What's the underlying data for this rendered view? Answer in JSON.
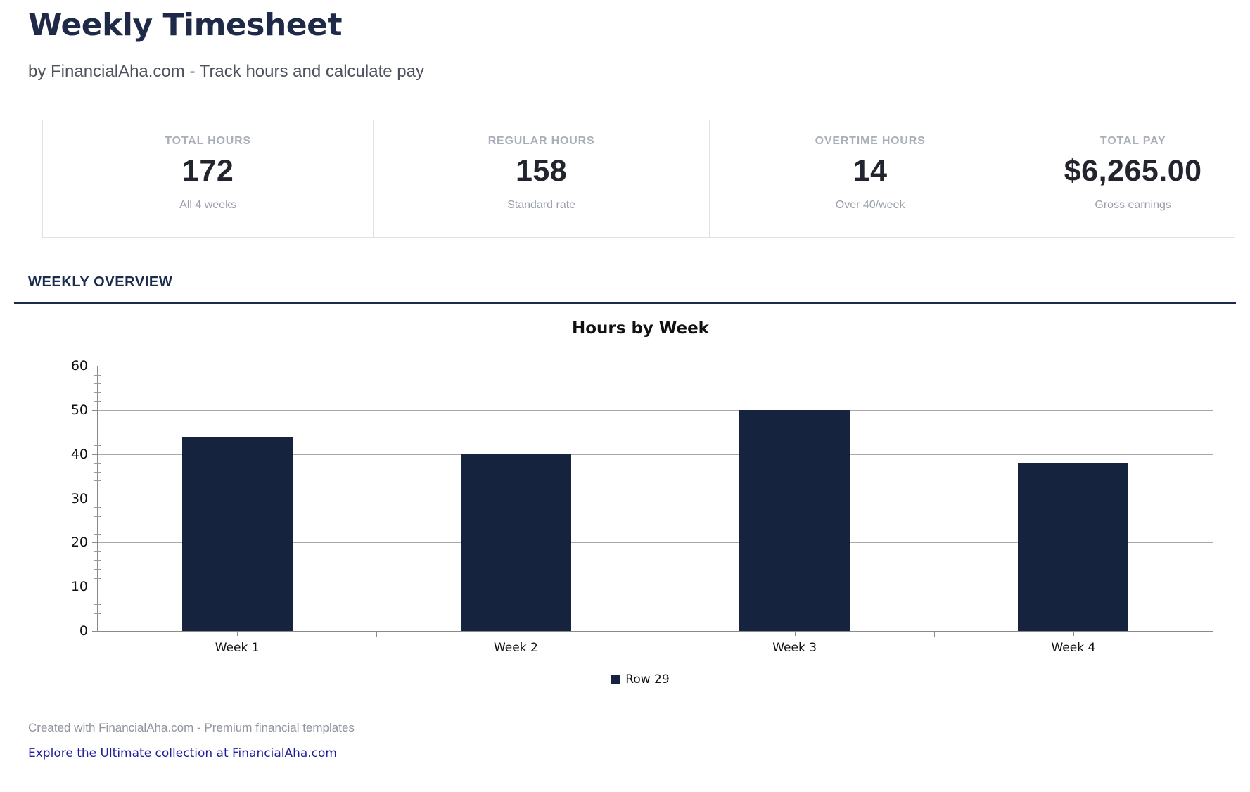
{
  "page": {
    "title": "Weekly Timesheet",
    "subtitle": "by FinancialAha.com - Track hours and calculate pay"
  },
  "stats": {
    "cards": [
      {
        "label": "TOTAL HOURS",
        "value": "172",
        "sub": "All 4 weeks"
      },
      {
        "label": "REGULAR HOURS",
        "value": "158",
        "sub": "Standard rate"
      },
      {
        "label": "OVERTIME HOURS",
        "value": "14",
        "sub": "Over 40/week"
      },
      {
        "label": "TOTAL PAY",
        "value": "$6,265.00",
        "sub": "Gross earnings"
      }
    ]
  },
  "section": {
    "heading": "WEEKLY OVERVIEW"
  },
  "chart_data": {
    "type": "bar",
    "title": "Hours by Week",
    "categories": [
      "Week 1",
      "Week 2",
      "Week 3",
      "Week 4"
    ],
    "values": [
      44,
      40,
      50,
      38
    ],
    "series_name": "Row 29",
    "ylim": [
      0,
      60
    ],
    "ytick_interval": 10,
    "yminor_interval": 2,
    "grid": true,
    "legend_position": "bottom",
    "bar_color": "#16233f"
  },
  "footer": {
    "credit": "Created with FinancialAha.com - Premium financial templates",
    "link_text": "Explore the Ultimate collection at FinancialAha.com"
  },
  "colors": {
    "accent_navy": "#1b2b4d",
    "bar_navy": "#16233f",
    "link_blue": "#1f1f9c"
  }
}
